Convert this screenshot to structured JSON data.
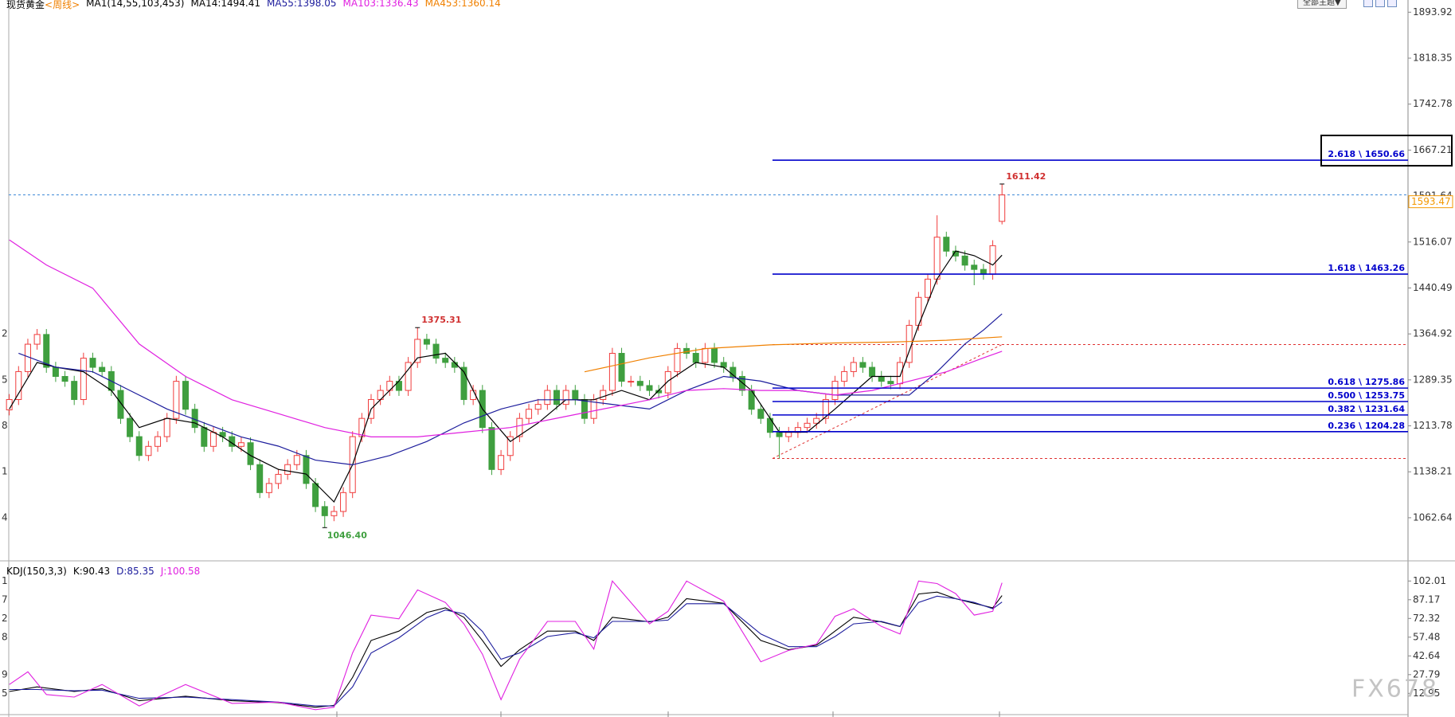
{
  "chart_data": {
    "type": "candlestick",
    "title": "现货黄金",
    "period": "<周线>",
    "indicator": "MA1(14,55,103,453)",
    "up_color": "#f03c3c",
    "down_color": "#3f9f3f",
    "ohlc": [
      [
        1240,
        1266,
        1231,
        1257
      ],
      [
        1257,
        1312,
        1248,
        1303
      ],
      [
        1303,
        1357,
        1294,
        1348
      ],
      [
        1348,
        1373,
        1339,
        1364
      ],
      [
        1364,
        1373,
        1301,
        1310
      ],
      [
        1310,
        1319,
        1286,
        1295
      ],
      [
        1295,
        1304,
        1278,
        1287
      ],
      [
        1287,
        1296,
        1248,
        1257
      ],
      [
        1257,
        1334,
        1248,
        1325
      ],
      [
        1325,
        1334,
        1301,
        1310
      ],
      [
        1310,
        1319,
        1294,
        1303
      ],
      [
        1303,
        1312,
        1263,
        1272
      ],
      [
        1272,
        1281,
        1217,
        1226
      ],
      [
        1226,
        1235,
        1187,
        1196
      ],
      [
        1196,
        1205,
        1156,
        1165
      ],
      [
        1165,
        1189,
        1156,
        1180
      ],
      [
        1180,
        1205,
        1171,
        1196
      ],
      [
        1196,
        1235,
        1187,
        1226
      ],
      [
        1226,
        1296,
        1217,
        1287
      ],
      [
        1287,
        1296,
        1232,
        1241
      ],
      [
        1241,
        1250,
        1202,
        1211
      ],
      [
        1211,
        1220,
        1171,
        1180
      ],
      [
        1180,
        1212,
        1171,
        1203
      ],
      [
        1203,
        1212,
        1187,
        1196
      ],
      [
        1196,
        1205,
        1171,
        1180
      ],
      [
        1180,
        1195,
        1171,
        1186
      ],
      [
        1186,
        1195,
        1141,
        1150
      ],
      [
        1150,
        1159,
        1095,
        1104
      ],
      [
        1104,
        1128,
        1095,
        1119
      ],
      [
        1119,
        1143,
        1110,
        1134
      ],
      [
        1134,
        1159,
        1125,
        1150
      ],
      [
        1150,
        1174,
        1141,
        1165
      ],
      [
        1165,
        1174,
        1110,
        1119
      ],
      [
        1119,
        1128,
        1072,
        1081
      ],
      [
        1081,
        1090,
        1046.4,
        1066
      ],
      [
        1066,
        1082,
        1057,
        1073
      ],
      [
        1073,
        1113,
        1064,
        1104
      ],
      [
        1104,
        1205,
        1095,
        1196
      ],
      [
        1196,
        1235,
        1187,
        1226
      ],
      [
        1226,
        1266,
        1217,
        1257
      ],
      [
        1257,
        1281,
        1248,
        1272
      ],
      [
        1272,
        1296,
        1263,
        1287
      ],
      [
        1287,
        1296,
        1263,
        1272
      ],
      [
        1272,
        1327,
        1263,
        1318
      ],
      [
        1318,
        1375.31,
        1309,
        1356
      ],
      [
        1356,
        1365,
        1339,
        1348
      ],
      [
        1348,
        1357,
        1316,
        1325
      ],
      [
        1325,
        1334,
        1309,
        1318
      ],
      [
        1318,
        1327,
        1301,
        1310
      ],
      [
        1310,
        1319,
        1248,
        1257
      ],
      [
        1257,
        1281,
        1248,
        1272
      ],
      [
        1272,
        1281,
        1202,
        1211
      ],
      [
        1211,
        1220,
        1133,
        1142
      ],
      [
        1142,
        1174,
        1133,
        1165
      ],
      [
        1165,
        1205,
        1156,
        1196
      ],
      [
        1196,
        1235,
        1187,
        1226
      ],
      [
        1226,
        1250,
        1217,
        1241
      ],
      [
        1241,
        1258,
        1232,
        1249
      ],
      [
        1249,
        1281,
        1240,
        1272
      ],
      [
        1272,
        1281,
        1240,
        1249
      ],
      [
        1249,
        1281,
        1240,
        1272
      ],
      [
        1272,
        1281,
        1248,
        1257
      ],
      [
        1257,
        1266,
        1217,
        1226
      ],
      [
        1226,
        1266,
        1217,
        1257
      ],
      [
        1257,
        1281,
        1248,
        1272
      ],
      [
        1272,
        1342,
        1263,
        1333
      ],
      [
        1333,
        1342,
        1278,
        1287
      ],
      [
        1287,
        1296,
        1278,
        1287
      ],
      [
        1287,
        1296,
        1271,
        1280
      ],
      [
        1280,
        1289,
        1263,
        1272
      ],
      [
        1272,
        1281,
        1259,
        1268
      ],
      [
        1268,
        1312,
        1259,
        1303
      ],
      [
        1303,
        1350,
        1294,
        1341
      ],
      [
        1341,
        1350,
        1324,
        1333
      ],
      [
        1333,
        1342,
        1309,
        1318
      ],
      [
        1318,
        1350,
        1309,
        1341
      ],
      [
        1341,
        1350,
        1309,
        1318
      ],
      [
        1318,
        1327,
        1301,
        1310
      ],
      [
        1310,
        1319,
        1286,
        1295
      ],
      [
        1295,
        1304,
        1263,
        1272
      ],
      [
        1272,
        1281,
        1232,
        1241
      ],
      [
        1241,
        1250,
        1217,
        1226
      ],
      [
        1226,
        1235,
        1194,
        1203
      ],
      [
        1203,
        1212,
        1160,
        1196
      ],
      [
        1196,
        1212,
        1187,
        1203
      ],
      [
        1203,
        1220,
        1194,
        1211
      ],
      [
        1211,
        1227,
        1202,
        1218
      ],
      [
        1218,
        1235,
        1209,
        1226
      ],
      [
        1226,
        1266,
        1217,
        1257
      ],
      [
        1257,
        1296,
        1248,
        1287
      ],
      [
        1287,
        1312,
        1278,
        1303
      ],
      [
        1303,
        1327,
        1294,
        1318
      ],
      [
        1318,
        1327,
        1301,
        1310
      ],
      [
        1310,
        1319,
        1286,
        1295
      ],
      [
        1295,
        1304,
        1278,
        1287
      ],
      [
        1287,
        1296,
        1274,
        1283
      ],
      [
        1283,
        1327,
        1274,
        1318
      ],
      [
        1318,
        1388,
        1309,
        1379
      ],
      [
        1379,
        1434,
        1370,
        1425
      ],
      [
        1425,
        1464,
        1416,
        1455
      ],
      [
        1455,
        1560,
        1446,
        1524
      ],
      [
        1524,
        1533,
        1492,
        1501
      ],
      [
        1501,
        1510,
        1484,
        1493
      ],
      [
        1493,
        1502,
        1469,
        1478
      ],
      [
        1478,
        1487,
        1445,
        1471
      ],
      [
        1471,
        1480,
        1454,
        1463
      ],
      [
        1463,
        1519,
        1454,
        1510
      ],
      [
        1550,
        1611.42,
        1545,
        1593.47
      ]
    ],
    "ylim": [
      997,
      1914
    ],
    "yticks": [
      1893.92,
      1818.35,
      1742.78,
      1667.21,
      1591.64,
      1516.07,
      1440.49,
      1364.92,
      1289.35,
      1213.78,
      1138.21,
      1062.64
    ],
    "ma_series": [
      {
        "name": "MA14:1494.41",
        "color": "#000000",
        "x": [
          0,
          3,
          5,
          8,
          11,
          14,
          17,
          20,
          23,
          26,
          29,
          32,
          35,
          37,
          39,
          42,
          44,
          47,
          49,
          51,
          54,
          57,
          60,
          63,
          66,
          69,
          71,
          74,
          77,
          80,
          83,
          86,
          89,
          93,
          96,
          98,
          100,
          102,
          104,
          106,
          107
        ],
        "values": [
          1241.5,
          1317.9,
          1310.2,
          1302.6,
          1272,
          1210.9,
          1226.2,
          1218.5,
          1195.6,
          1165,
          1142.1,
          1134.5,
          1088.7,
          1149.8,
          1241.5,
          1287.3,
          1325.5,
          1333.1,
          1302.6,
          1241.5,
          1188,
          1218.5,
          1256.7,
          1256.7,
          1272,
          1256.7,
          1287.3,
          1317.9,
          1310.2,
          1272,
          1203.3,
          1203.3,
          1241.5,
          1295,
          1295,
          1379,
          1455.4,
          1501.2,
          1493.6,
          1478.3,
          1494.41
        ]
      },
      {
        "name": "MA55:1398.05",
        "color": "#1c1c9c",
        "x": [
          1,
          5,
          9,
          13,
          17,
          21,
          25,
          29,
          33,
          37,
          41,
          45,
          49,
          53,
          57,
          61,
          65,
          69,
          73,
          77,
          81,
          85,
          89,
          93,
          97,
          100,
          103,
          105,
          107
        ],
        "values": [
          1333.1,
          1310.2,
          1302.6,
          1272,
          1241.5,
          1218.5,
          1195.6,
          1180.4,
          1157.4,
          1149.8,
          1165,
          1188,
          1218.5,
          1241.5,
          1256.7,
          1256.7,
          1249.1,
          1241.5,
          1272,
          1295,
          1287.3,
          1272,
          1264.4,
          1264.4,
          1264.4,
          1302.6,
          1348.4,
          1371.3,
          1398.05
        ]
      },
      {
        "name": "MA103:1336.43",
        "color": "#e020e0",
        "x": [
          0,
          4,
          9,
          14,
          19,
          24,
          29,
          34,
          39,
          44,
          49,
          54,
          59,
          64,
          69,
          73,
          77,
          81,
          85,
          89,
          93,
          97,
          101,
          105,
          107
        ],
        "values": [
          1519.6,
          1478.3,
          1440.1,
          1348.4,
          1295,
          1256.7,
          1233.8,
          1210.9,
          1195.6,
          1195.6,
          1203.3,
          1210.9,
          1226.2,
          1241.5,
          1256.7,
          1272,
          1275,
          1272,
          1272,
          1264.4,
          1272,
          1287.3,
          1302.6,
          1325.5,
          1336.43
        ]
      },
      {
        "name": "MA453:1360.14",
        "color": "#f08000",
        "x": [
          62,
          69,
          75,
          82,
          89,
          95,
          101,
          107
        ],
        "values": [
          1302.6,
          1325.5,
          1340.8,
          1346.9,
          1350,
          1351.5,
          1354.5,
          1360.14
        ]
      }
    ],
    "last_price": 1593.47,
    "last_price_color": "#f39800",
    "last_line_color": "#3a86d8",
    "high_labels": [
      1375.31,
      1611.42
    ],
    "high_color": "#d03030",
    "low_labels": [
      {
        "value": 1046.4,
        "label": "1046.40"
      }
    ],
    "low_color": "#3f9f3f",
    "fib_color": "#0000cc",
    "fib_levels": [
      {
        "value": 1650.66,
        "label": "2.618 \\ 1650.66"
      },
      {
        "value": 1463.26,
        "label": "1.618 \\ 1463.26"
      },
      {
        "value": 1275.86,
        "label": "0.618 \\ 1275.86"
      },
      {
        "value": 1253.75,
        "label": "0.500 \\ 1253.75"
      },
      {
        "value": 1231.64,
        "label": "0.382 \\ 1231.64"
      },
      {
        "value": 1204.28,
        "label": "0.236 \\ 1204.28"
      }
    ],
    "fib_anchors": [
      1160.06,
      1347.44
    ],
    "anchor_color": "#e03030",
    "left_fragments": [
      "2",
      "5",
      "8",
      "1",
      "4"
    ],
    "kdj": {
      "title": "KDJ(150,3,3)",
      "ylim": [
        -3.9,
        112.3
      ],
      "yticks": [
        102.01,
        87.17,
        72.32,
        57.48,
        42.64,
        27.79,
        12.95
      ],
      "left_fragments": [
        "1",
        "7",
        "2",
        "8",
        "9",
        "5"
      ],
      "series": [
        {
          "name": "K:90.43",
          "color": "#000000",
          "x": [
            0,
            3,
            7,
            10,
            14,
            19,
            24,
            29,
            33,
            35,
            37,
            39,
            42,
            45,
            47,
            49,
            51,
            53,
            55,
            58,
            61,
            63,
            65,
            69,
            71,
            73,
            77,
            81,
            84,
            87,
            89,
            91,
            94,
            96,
            98,
            100,
            102,
            104,
            106,
            107
          ],
          "values": [
            14.4,
            18.1,
            14.4,
            16.6,
            7.1,
            10.7,
            7.1,
            5.6,
            1.9,
            3.4,
            25.5,
            54.9,
            62.3,
            77,
            80.7,
            73.3,
            54.9,
            34.3,
            47.5,
            62.3,
            62.3,
            54.9,
            73.3,
            69.6,
            73.3,
            88,
            84.3,
            54.9,
            47.5,
            51.2,
            62.3,
            73.3,
            69.6,
            65.9,
            91.7,
            93.2,
            88,
            84.3,
            80.7,
            90.43
          ]
        },
        {
          "name": "D:85.35",
          "color": "#1c1c9c",
          "x": [
            0,
            3,
            7,
            10,
            14,
            19,
            24,
            29,
            33,
            35,
            37,
            39,
            42,
            45,
            47,
            49,
            51,
            53,
            55,
            58,
            61,
            63,
            65,
            69,
            71,
            73,
            77,
            81,
            84,
            87,
            89,
            91,
            94,
            96,
            98,
            100,
            102,
            104,
            106,
            107
          ],
          "values": [
            16,
            16,
            15,
            15.5,
            9,
            10,
            8,
            6,
            3,
            3,
            18,
            45,
            57,
            73,
            79,
            76,
            62,
            40,
            45,
            58,
            61,
            57,
            70,
            70,
            71,
            84,
            84,
            60,
            50,
            50,
            58,
            68,
            70,
            66,
            85,
            90,
            88,
            85,
            80,
            85.35
          ]
        },
        {
          "name": "J:100.58",
          "color": "#e020e0",
          "x": [
            0,
            2,
            4,
            7,
            10,
            14,
            19,
            24,
            29,
            33,
            35,
            37,
            39,
            42,
            44,
            47,
            49,
            51,
            53,
            55,
            58,
            61,
            63,
            65,
            69,
            71,
            73,
            77,
            81,
            84,
            87,
            89,
            91,
            94,
            96,
            98,
            100,
            102,
            104,
            106,
            107
          ],
          "values": [
            20,
            30,
            12,
            10,
            20,
            3,
            20,
            5,
            6,
            0,
            2,
            45,
            75,
            72,
            95,
            85,
            68,
            44,
            8,
            40,
            70,
            70,
            48,
            102,
            68,
            78,
            102,
            86,
            38,
            47,
            52,
            74,
            80,
            66,
            60,
            102,
            100,
            92,
            75,
            78,
            100.58
          ]
        }
      ]
    }
  },
  "toolbar": "全部主题▼",
  "watermark": "FX678"
}
